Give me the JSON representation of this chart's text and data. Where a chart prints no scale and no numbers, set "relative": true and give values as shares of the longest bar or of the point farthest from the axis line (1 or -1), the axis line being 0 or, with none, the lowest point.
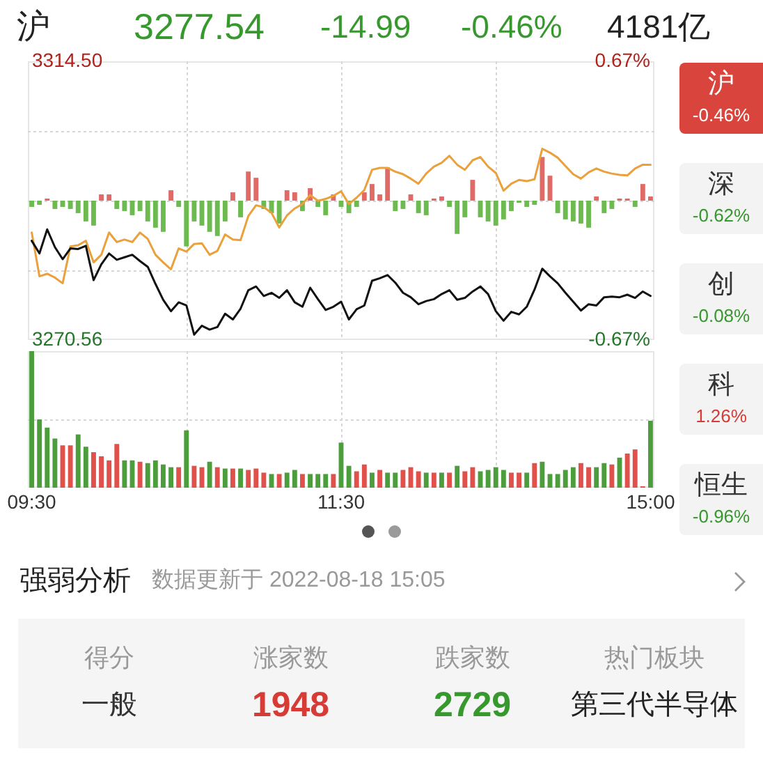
{
  "chart_data": [
    {
      "type": "other",
      "title": "沪",
      "annotations": [
        "3277.54",
        "-14.99",
        "-0.46%",
        "4181亿"
      ],
      "colors": [
        "#37982e",
        "#37982e",
        "#37982e",
        "#222222"
      ]
    },
    {
      "type": "line",
      "categories": [
        null,
        null,
        null,
        null,
        null,
        null,
        null,
        null,
        null,
        null,
        null,
        null,
        null,
        null,
        null,
        null,
        null,
        null,
        null,
        null,
        null,
        null,
        null,
        null,
        null,
        null,
        null,
        null,
        null,
        null,
        null,
        null,
        null,
        null,
        null,
        null,
        null,
        null,
        null,
        null,
        null,
        null,
        null,
        null,
        null,
        null,
        null,
        null,
        null,
        null,
        null,
        null,
        null,
        null,
        null,
        null,
        null,
        null,
        null,
        null,
        null,
        null,
        null,
        null,
        null,
        null,
        null,
        null,
        null,
        null,
        null,
        null,
        null,
        null,
        null,
        null,
        null,
        null,
        null,
        null,
        null
      ],
      "series": [
        {
          "color": "#111111",
          "values": [
            3286.2,
            3284.2,
            3288.0,
            3285.2,
            3283.3,
            3285.0,
            3284.9,
            3285.4,
            3280.0,
            3282.5,
            3284.2,
            3283.2,
            3283.6,
            3284.0,
            3283.0,
            3282.1,
            3279.4,
            3276.9,
            3275.1,
            3276.5,
            3276.0,
            3271.4,
            3272.8,
            3272.2,
            3272.6,
            3274.7,
            3273.8,
            3275.5,
            3278.4,
            3279.0,
            3277.5,
            3278.0,
            3277.2,
            3278.4,
            3276.5,
            3275.8,
            3278.8,
            3277.0,
            3275.3,
            3275.8,
            3276.6,
            3273.8,
            3275.4,
            3276.0,
            3279.9,
            3280.3,
            3280.8,
            3279.6,
            3278.0,
            3277.3,
            3276.2,
            3276.7,
            3277.0,
            3277.8,
            3278.4,
            3276.9,
            3277.2,
            3278.2,
            3279.0,
            3277.8,
            3275.1,
            3273.6,
            3275.0,
            3274.6,
            3275.8,
            3278.5,
            3281.8,
            3280.6,
            3279.5,
            3278.0,
            3276.6,
            3275.2,
            3276.2,
            3276.0,
            3277.3,
            3277.4,
            3277.3,
            3277.7,
            3277.2,
            3278.2,
            3277.5
          ]
        },
        {
          "color": "#eaa13c",
          "values": [
            3287.5,
            3280.6,
            3281.0,
            3280.4,
            3279.5,
            3285.3,
            3285.5,
            3286.2,
            3282.8,
            3284.0,
            3287.5,
            3286.0,
            3286.4,
            3286.0,
            3287.5,
            3286.5,
            3284.0,
            3282.8,
            3281.7,
            3285.0,
            3284.5,
            3285.7,
            3285.8,
            3284.0,
            3284.6,
            3287.2,
            3286.4,
            3286.3,
            3290.1,
            3291.8,
            3291.5,
            3290.6,
            3288.3,
            3290.2,
            3291.3,
            3292.0,
            3293.4,
            3292.5,
            3292.8,
            3293.3,
            3294.0,
            3292.0,
            3293.0,
            3294.2,
            3297.4,
            3297.7,
            3297.7,
            3297.1,
            3296.7,
            3296.0,
            3295.2,
            3296.8,
            3297.9,
            3298.5,
            3299.6,
            3298.2,
            3297.4,
            3298.9,
            3299.4,
            3297.9,
            3296.9,
            3294.1,
            3295.2,
            3295.8,
            3295.6,
            3295.9,
            3300.7,
            3300.1,
            3299.3,
            3298.0,
            3296.7,
            3296.0,
            3297.0,
            3297.6,
            3297.1,
            3296.8,
            3296.6,
            3296.5,
            3297.6,
            3298.2,
            3298.2
          ]
        },
        {
          "type": "bar",
          "axis": "y2",
          "color": "#e06a66",
          "values": [
            null,
            null,
            0.01,
            null,
            null,
            null,
            null,
            null,
            null,
            0.03,
            0.03,
            null,
            null,
            null,
            null,
            null,
            null,
            null,
            0.05,
            null,
            null,
            null,
            null,
            null,
            null,
            null,
            0.04,
            null,
            0.14,
            0.11,
            null,
            null,
            null,
            0.05,
            0.04,
            null,
            0.06,
            null,
            null,
            0.03,
            null,
            null,
            null,
            0.04,
            0.08,
            0.03,
            0.16,
            null,
            null,
            0.03,
            null,
            null,
            0.01,
            0.02,
            null,
            null,
            null,
            0.1,
            null,
            null,
            null,
            null,
            null,
            null,
            null,
            null,
            0.21,
            0.12,
            null,
            null,
            null,
            null,
            null,
            0.02,
            null,
            null,
            0.01,
            0.01,
            null,
            0.08,
            0.02
          ]
        },
        {
          "type": "bar",
          "axis": "y2",
          "color": "#6cba50",
          "values": [
            -0.03,
            -0.02,
            null,
            -0.04,
            -0.03,
            -0.04,
            -0.06,
            -0.1,
            -0.12,
            null,
            null,
            -0.04,
            -0.05,
            -0.07,
            -0.05,
            -0.1,
            -0.13,
            -0.15,
            null,
            -0.03,
            -0.22,
            -0.1,
            -0.12,
            -0.15,
            -0.17,
            -0.1,
            null,
            -0.08,
            null,
            null,
            -0.04,
            -0.06,
            -0.11,
            null,
            null,
            -0.05,
            null,
            -0.03,
            -0.07,
            null,
            -0.03,
            -0.06,
            -0.03,
            null,
            null,
            null,
            null,
            -0.05,
            -0.04,
            null,
            -0.06,
            -0.07,
            null,
            null,
            -0.03,
            -0.16,
            -0.08,
            null,
            -0.08,
            -0.1,
            -0.12,
            -0.09,
            -0.05,
            -0.01,
            -0.03,
            -0.02,
            null,
            null,
            -0.06,
            -0.09,
            -0.1,
            -0.11,
            -0.13,
            null,
            -0.06,
            -0.04,
            null,
            null,
            -0.03,
            null,
            null
          ]
        }
      ],
      "ylim": [
        3270.56,
        3314.5
      ],
      "yticks": [
        3270.56,
        {
          "value": 3281.545,
          "label": null
        },
        {
          "value": 3292.53,
          "label": null
        },
        {
          "value": 3303.515,
          "label": null
        },
        {
          "value": 3314.5,
          "label": "3314.50"
        }
      ],
      "y2lim": [
        -0.67,
        0.67
      ],
      "y2ticks": [
        {
          "value": -0.67,
          "label": "-0.67%"
        },
        {
          "value": 0.67,
          "label": "0.67%"
        }
      ],
      "grid": true,
      "tick_labels": "y"
    },
    {
      "type": "bar",
      "relative": true,
      "categories": [
        "09:30",
        null,
        null,
        null,
        null,
        null,
        null,
        null,
        null,
        null,
        null,
        null,
        null,
        null,
        null,
        null,
        null,
        null,
        null,
        null,
        null,
        null,
        null,
        null,
        null,
        null,
        null,
        null,
        null,
        null,
        null,
        null,
        null,
        null,
        null,
        null,
        null,
        null,
        null,
        null,
        "11:30",
        null,
        null,
        null,
        null,
        null,
        null,
        null,
        null,
        null,
        null,
        null,
        null,
        null,
        null,
        null,
        null,
        null,
        null,
        null,
        null,
        null,
        null,
        null,
        null,
        null,
        null,
        null,
        null,
        null,
        null,
        null,
        null,
        null,
        null,
        null,
        null,
        null,
        null,
        null,
        "15:00"
      ],
      "series": [
        {
          "color": "#e0514c",
          "values": [
            null,
            null,
            null,
            null,
            0.31,
            0.31,
            null,
            null,
            0.26,
            0.23,
            0.2,
            0.32,
            null,
            null,
            0.19,
            null,
            null,
            null,
            null,
            0.15,
            null,
            0.16,
            0.15,
            null,
            0.15,
            null,
            0.14,
            null,
            0.13,
            0.14,
            0.11,
            null,
            0.1,
            null,
            null,
            0.1,
            null,
            null,
            null,
            0.1,
            null,
            null,
            0.12,
            0.17,
            null,
            0.13,
            null,
            null,
            0.13,
            0.15,
            0.12,
            null,
            0.11,
            null,
            0.11,
            null,
            0.12,
            0.15,
            null,
            null,
            null,
            null,
            0.11,
            0.11,
            null,
            0.18,
            null,
            null,
            null,
            null,
            null,
            0.18,
            0.15,
            null,
            null,
            0.17,
            null,
            0.25,
            0.28,
            0.01,
            null
          ]
        },
        {
          "color": "#4c9e3d",
          "values": [
            1,
            0.5,
            0.44,
            0.36,
            null,
            null,
            0.39,
            0.3,
            null,
            null,
            null,
            null,
            0.2,
            0.2,
            null,
            0.18,
            0.2,
            0.17,
            0.15,
            null,
            0.42,
            null,
            null,
            0.19,
            null,
            0.14,
            null,
            0.14,
            null,
            null,
            null,
            0.1,
            null,
            0.11,
            0.13,
            null,
            0.1,
            0.1,
            0.1,
            null,
            0.33,
            0.16,
            null,
            null,
            0.11,
            null,
            0.11,
            0.11,
            null,
            null,
            null,
            0.11,
            null,
            0.11,
            null,
            0.16,
            null,
            null,
            0.12,
            0.13,
            0.15,
            0.13,
            null,
            null,
            0.11,
            null,
            0.19,
            0.1,
            0.1,
            0.13,
            0.15,
            null,
            null,
            0.15,
            0.18,
            null,
            0.22,
            null,
            null,
            null,
            0.49
          ]
        }
      ],
      "grid": true,
      "tick_labels": "x"
    },
    {
      "type": "other",
      "categories": [
        "沪",
        "深",
        "创",
        "科",
        "恒生"
      ],
      "value_labels": [
        "-0.46%",
        "-0.62%",
        "-0.08%",
        "1.26%",
        "-0.96%"
      ],
      "colors": [
        "#ffffff",
        "#37982e",
        "#37982e",
        "#d63b35",
        "#37982e"
      ]
    },
    {
      "type": "other",
      "title": "强弱分析",
      "subtitle": "数据更新于 2022-08-18 15:05",
      "categories": [
        "得分",
        "涨家数",
        "跌家数",
        "热门板块"
      ],
      "value_labels": [
        "一般",
        "1948",
        "2729",
        "第三代半导体"
      ],
      "colors": [
        "#333333",
        "#d63b35",
        "#37982e",
        "#222222"
      ]
    }
  ]
}
